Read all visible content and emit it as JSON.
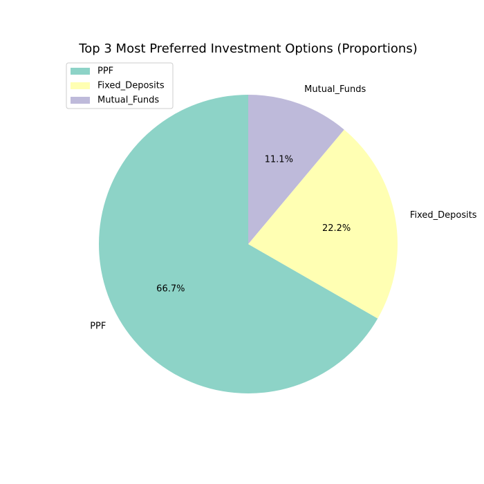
{
  "chart_data": {
    "type": "pie",
    "title": "Top 3 Most Preferred Investment Options (Proportions)",
    "categories": [
      "PPF",
      "Fixed_Deposits",
      "Mutual_Funds"
    ],
    "values": [
      66.7,
      22.2,
      11.1
    ],
    "percent_labels": [
      "66.7%",
      "22.2%",
      "11.1%"
    ],
    "colors": [
      "#8dd3c7",
      "#ffffb3",
      "#bebada"
    ],
    "start_angle_deg": 90,
    "direction": "counterclockwise",
    "legend": {
      "placement": "upper-left",
      "entries": [
        "PPF",
        "Fixed_Deposits",
        "Mutual_Funds"
      ]
    }
  }
}
